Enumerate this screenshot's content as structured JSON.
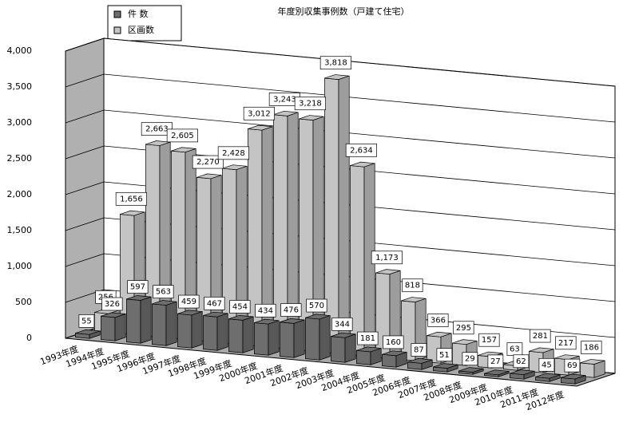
{
  "chart_data": {
    "type": "bar3d",
    "title": "年度別収集事例数（戸建て住宅）",
    "categories": [
      "1993年度",
      "1994年度",
      "1995年度",
      "1996年度",
      "1997年度",
      "1998年度",
      "1999年度",
      "2000年度",
      "2001年度",
      "2002年度",
      "2003年度",
      "2004年度",
      "2005年度",
      "2006年度",
      "2007年度",
      "2008年度",
      "2009年度",
      "2010年度",
      "2011年度",
      "2012年度"
    ],
    "series": [
      {
        "name": "件 数",
        "color": "#6e6e6e",
        "values": [
          55,
          326,
          597,
          563,
          459,
          467,
          454,
          434,
          476,
          570,
          344,
          181,
          160,
          87,
          51,
          29,
          27,
          62,
          45,
          69
        ]
      },
      {
        "name": "区画数",
        "color": "#c4c4c4",
        "values": [
          256,
          1656,
          2663,
          2605,
          2270,
          2428,
          3012,
          3243,
          3218,
          3818,
          2634,
          1173,
          818,
          366,
          295,
          157,
          63,
          281,
          217,
          186
        ],
        "value_labels": [
          "256",
          "1,656",
          "2,663",
          "2,605",
          "2,270",
          "2,428",
          "3,012",
          "3,243",
          "3,218",
          "3,818",
          "2,634",
          "1,173",
          "818",
          "366",
          "295",
          "157",
          "63",
          "281",
          "217",
          "186"
        ]
      }
    ],
    "ylim": [
      0,
      4000
    ],
    "yticks": [
      0,
      500,
      {
        "value": 1000,
        "label": "1,000"
      },
      {
        "value": 1500,
        "label": "1,500"
      },
      {
        "value": 2000,
        "label": "2,000"
      },
      {
        "value": 2500,
        "label": "2,500"
      },
      {
        "value": 3000,
        "label": "3,000"
      },
      {
        "value": 3500,
        "label": "3,500"
      },
      {
        "value": 4000,
        "label": "4,000"
      }
    ],
    "grid": true
  }
}
